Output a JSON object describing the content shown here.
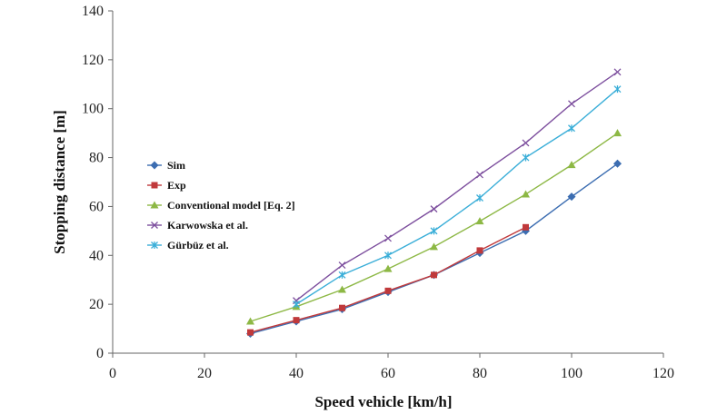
{
  "chart_data": {
    "type": "line",
    "xlabel": "Speed vehicle [km/h]",
    "ylabel": "Stopping distance [m]",
    "xlim": [
      0,
      120
    ],
    "ylim": [
      0,
      140
    ],
    "xticks": [
      0,
      20,
      40,
      60,
      80,
      100,
      120
    ],
    "yticks": [
      0,
      20,
      40,
      60,
      80,
      100,
      120,
      140
    ],
    "grid": false,
    "legend_position": "left-center",
    "series": [
      {
        "name": "Sim",
        "color": "#3C6DB1",
        "marker": "diamond",
        "x": [
          30,
          40,
          50,
          60,
          70,
          80,
          90,
          100,
          110
        ],
        "y": [
          8,
          13,
          18,
          25,
          32,
          41,
          50,
          64,
          77.5
        ]
      },
      {
        "name": "Exp",
        "color": "#C0393B",
        "marker": "square",
        "x": [
          30,
          40,
          50,
          60,
          70,
          80,
          90
        ],
        "y": [
          8.5,
          13.5,
          18.5,
          25.5,
          32,
          42,
          51.5
        ]
      },
      {
        "name": "Conventional model [Eq. 2]",
        "color": "#8DB845",
        "marker": "triangle",
        "x": [
          30,
          40,
          50,
          60,
          70,
          80,
          90,
          100,
          110
        ],
        "y": [
          13,
          19,
          26,
          34.5,
          43.5,
          54,
          65,
          77,
          90
        ]
      },
      {
        "name": "Karwowska et al.",
        "color": "#7D4F9E",
        "marker": "x",
        "x": [
          40,
          50,
          60,
          70,
          80,
          90,
          100,
          110
        ],
        "y": [
          21.5,
          36,
          47,
          59,
          73,
          86,
          102,
          115
        ]
      },
      {
        "name": "Gürbüz et al.",
        "color": "#3AAED8",
        "marker": "star",
        "x": [
          40,
          50,
          60,
          70,
          80,
          90,
          100,
          110
        ],
        "y": [
          20,
          32,
          40,
          50,
          63.5,
          80,
          92,
          108
        ]
      }
    ]
  }
}
